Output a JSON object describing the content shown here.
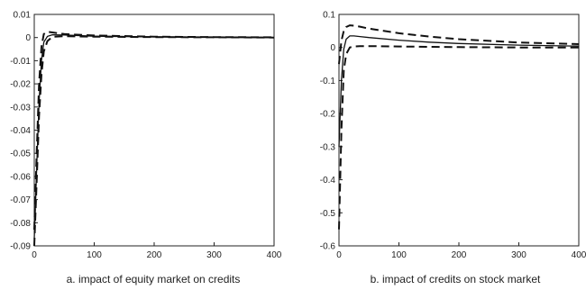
{
  "chart_data": [
    {
      "type": "line",
      "caption": "a. impact of equity market on credits",
      "xlim": [
        0,
        400
      ],
      "ylim": [
        -0.09,
        0.01
      ],
      "xticks": [
        0,
        100,
        200,
        300,
        400
      ],
      "xtick_labels": [
        "0",
        "100",
        "200",
        "300",
        "400"
      ],
      "yticks": [
        0.01,
        0,
        -0.01,
        -0.02,
        -0.03,
        -0.04,
        -0.05,
        -0.06,
        -0.07,
        -0.08,
        -0.09
      ],
      "ytick_labels": [
        "0.01",
        "0",
        "-0.01",
        "-0.02",
        "-0.03",
        "-0.04",
        "-0.05",
        "-0.06",
        "-0.07",
        "-0.08",
        "-0.09"
      ],
      "grid": false,
      "series": [
        {
          "style": "dashed",
          "x": [
            0,
            4,
            8,
            12,
            16,
            22,
            30,
            50,
            100,
            200,
            300,
            400
          ],
          "y": [
            -0.083,
            -0.05,
            -0.02,
            -0.004,
            0.0015,
            0.0025,
            0.0022,
            0.0015,
            0.0009,
            0.0004,
            0.0002,
            0.0001
          ]
        },
        {
          "style": "solid",
          "x": [
            0,
            4,
            8,
            12,
            16,
            22,
            30,
            50,
            100,
            200,
            300,
            400
          ],
          "y": [
            -0.087,
            -0.056,
            -0.028,
            -0.01,
            -0.002,
            0.0005,
            0.0012,
            0.0011,
            0.0006,
            0.0003,
            0.0001,
            0.0
          ]
        },
        {
          "style": "dashed",
          "x": [
            0,
            4,
            8,
            12,
            16,
            22,
            30,
            50,
            100,
            200,
            300,
            400
          ],
          "y": [
            -0.09,
            -0.062,
            -0.034,
            -0.016,
            -0.006,
            -0.0015,
            0.0003,
            0.0006,
            0.0004,
            0.0002,
            0.0001,
            0.0
          ]
        }
      ]
    },
    {
      "type": "line",
      "caption": "b. impact of credits on stock market",
      "xlim": [
        0,
        400
      ],
      "ylim": [
        -0.6,
        0.1
      ],
      "xticks": [
        0,
        100,
        200,
        300,
        400
      ],
      "xtick_labels": [
        "0",
        "100",
        "200",
        "300",
        "400"
      ],
      "yticks": [
        0.1,
        0,
        -0.1,
        -0.2,
        -0.3,
        -0.4,
        -0.5,
        -0.6
      ],
      "ytick_labels": [
        "0.1",
        "0",
        "-0.1",
        "-0.2",
        "-0.3",
        "-0.4",
        "-0.5",
        "-0.6"
      ],
      "grid": false,
      "series": [
        {
          "style": "dashed",
          "x": [
            0,
            4,
            8,
            12,
            18,
            25,
            35,
            50,
            100,
            150,
            200,
            300,
            400
          ],
          "y": [
            -0.05,
            0.02,
            0.05,
            0.062,
            0.067,
            0.066,
            0.063,
            0.057,
            0.043,
            0.033,
            0.025,
            0.015,
            0.01
          ]
        },
        {
          "style": "solid",
          "x": [
            0,
            4,
            8,
            12,
            18,
            25,
            35,
            50,
            100,
            150,
            200,
            300,
            400
          ],
          "y": [
            -0.3,
            -0.1,
            -0.005,
            0.025,
            0.035,
            0.035,
            0.033,
            0.03,
            0.022,
            0.016,
            0.012,
            0.007,
            0.004
          ]
        },
        {
          "style": "dashed",
          "x": [
            0,
            4,
            8,
            12,
            18,
            25,
            35,
            50,
            100,
            150,
            200,
            300,
            400
          ],
          "y": [
            -0.55,
            -0.25,
            -0.07,
            -0.02,
            0.0,
            0.003,
            0.004,
            0.004,
            0.003,
            0.002,
            0.001,
            0.0,
            0.0
          ]
        }
      ]
    }
  ]
}
